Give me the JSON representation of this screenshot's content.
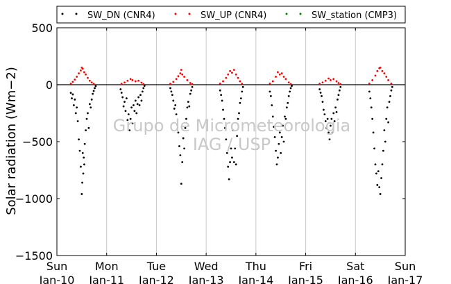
{
  "chart_data": {
    "type": "scatter",
    "title": "",
    "ylabel": "Solar radiation (Wm−2)",
    "ylim": [
      -1500,
      500
    ],
    "yticks": [
      500,
      0,
      -500,
      -1000,
      -1500
    ],
    "ytick_labels": [
      "500",
      "0",
      "−500",
      "−1000",
      "−1500"
    ],
    "xlim": [
      0,
      7
    ],
    "xticks": [
      {
        "x": 0,
        "day": "Sun",
        "date": "Jan-10"
      },
      {
        "x": 1,
        "day": "Mon",
        "date": "Jan-11"
      },
      {
        "x": 2,
        "day": "Tue",
        "date": "Jan-12"
      },
      {
        "x": 3,
        "day": "Wed",
        "date": "Jan-13"
      },
      {
        "x": 4,
        "day": "Thu",
        "date": "Jan-14"
      },
      {
        "x": 5,
        "day": "Fri",
        "date": "Jan-15"
      },
      {
        "x": 6,
        "day": "Sat",
        "date": "Jan-16"
      },
      {
        "x": 7,
        "day": "Sun",
        "date": "Jan-17"
      }
    ],
    "grid": "vertical",
    "legend_placement": "top",
    "series": [
      {
        "name": "SW_DN (CNR4)",
        "color": "#000000",
        "daily_min": [
          -960,
          -400,
          -870,
          -830,
          -700,
          -480,
          -960
        ],
        "points": [
          [
            0.28,
            -72
          ],
          [
            0.3,
            -120
          ],
          [
            0.32,
            -85
          ],
          [
            0.34,
            -180
          ],
          [
            0.36,
            -130
          ],
          [
            0.38,
            -250
          ],
          [
            0.4,
            -200
          ],
          [
            0.42,
            -320
          ],
          [
            0.44,
            -480
          ],
          [
            0.46,
            -580
          ],
          [
            0.48,
            -720
          ],
          [
            0.5,
            -960
          ],
          [
            0.51,
            -860
          ],
          [
            0.52,
            -600
          ],
          [
            0.53,
            -780
          ],
          [
            0.54,
            -640
          ],
          [
            0.55,
            -700
          ],
          [
            0.56,
            -520
          ],
          [
            0.58,
            -400
          ],
          [
            0.6,
            -300
          ],
          [
            0.62,
            -250
          ],
          [
            0.64,
            -380
          ],
          [
            0.66,
            -170
          ],
          [
            0.68,
            -200
          ],
          [
            0.7,
            -130
          ],
          [
            0.72,
            -80
          ],
          [
            0.74,
            -55
          ],
          [
            0.76,
            -30
          ],
          [
            0.78,
            -12
          ],
          [
            1.28,
            -40
          ],
          [
            1.3,
            -70
          ],
          [
            1.32,
            -110
          ],
          [
            1.34,
            -190
          ],
          [
            1.36,
            -150
          ],
          [
            1.38,
            -230
          ],
          [
            1.4,
            -120
          ],
          [
            1.42,
            -310
          ],
          [
            1.44,
            -260
          ],
          [
            1.46,
            -400
          ],
          [
            1.48,
            -300
          ],
          [
            1.5,
            -200
          ],
          [
            1.52,
            -340
          ],
          [
            1.54,
            -180
          ],
          [
            1.56,
            -230
          ],
          [
            1.58,
            -140
          ],
          [
            1.6,
            -250
          ],
          [
            1.62,
            -170
          ],
          [
            1.64,
            -110
          ],
          [
            1.66,
            -180
          ],
          [
            1.68,
            -90
          ],
          [
            1.7,
            -140
          ],
          [
            1.72,
            -60
          ],
          [
            1.74,
            -30
          ],
          [
            1.76,
            -10
          ],
          [
            2.28,
            -30
          ],
          [
            2.3,
            -60
          ],
          [
            2.32,
            -90
          ],
          [
            2.34,
            -140
          ],
          [
            2.36,
            -210
          ],
          [
            2.38,
            -180
          ],
          [
            2.4,
            -260
          ],
          [
            2.42,
            -350
          ],
          [
            2.44,
            -420
          ],
          [
            2.46,
            -540
          ],
          [
            2.48,
            -620
          ],
          [
            2.5,
            -870
          ],
          [
            2.52,
            -680
          ],
          [
            2.54,
            -470
          ],
          [
            2.56,
            -560
          ],
          [
            2.58,
            -380
          ],
          [
            2.6,
            -300
          ],
          [
            2.62,
            -200
          ],
          [
            2.64,
            -150
          ],
          [
            2.66,
            -190
          ],
          [
            2.68,
            -80
          ],
          [
            2.7,
            -50
          ],
          [
            2.72,
            -20
          ],
          [
            3.28,
            -50
          ],
          [
            3.3,
            -90
          ],
          [
            3.32,
            -140
          ],
          [
            3.34,
            -220
          ],
          [
            3.36,
            -300
          ],
          [
            3.38,
            -380
          ],
          [
            3.4,
            -480
          ],
          [
            3.42,
            -600
          ],
          [
            3.44,
            -720
          ],
          [
            3.46,
            -830
          ],
          [
            3.48,
            -680
          ],
          [
            3.5,
            -560
          ],
          [
            3.52,
            -640
          ],
          [
            3.54,
            -400
          ],
          [
            3.56,
            -680
          ],
          [
            3.58,
            -560
          ],
          [
            3.6,
            -700
          ],
          [
            3.62,
            -450
          ],
          [
            3.64,
            -300
          ],
          [
            3.66,
            -250
          ],
          [
            3.68,
            -160
          ],
          [
            3.7,
            -120
          ],
          [
            3.72,
            -60
          ],
          [
            3.74,
            -20
          ],
          [
            4.28,
            -60
          ],
          [
            4.3,
            -100
          ],
          [
            4.32,
            -180
          ],
          [
            4.34,
            -280
          ],
          [
            4.36,
            -370
          ],
          [
            4.38,
            -460
          ],
          [
            4.4,
            -580
          ],
          [
            4.42,
            -700
          ],
          [
            4.44,
            -640
          ],
          [
            4.46,
            -520
          ],
          [
            4.48,
            -420
          ],
          [
            4.5,
            -600
          ],
          [
            4.52,
            -460
          ],
          [
            4.54,
            -360
          ],
          [
            4.56,
            -500
          ],
          [
            4.58,
            -280
          ],
          [
            4.6,
            -300
          ],
          [
            4.62,
            -200
          ],
          [
            4.64,
            -160
          ],
          [
            4.66,
            -100
          ],
          [
            4.68,
            -60
          ],
          [
            4.7,
            -30
          ],
          [
            4.72,
            -10
          ],
          [
            5.28,
            -40
          ],
          [
            5.3,
            -70
          ],
          [
            5.32,
            -100
          ],
          [
            5.34,
            -150
          ],
          [
            5.36,
            -220
          ],
          [
            5.38,
            -260
          ],
          [
            5.4,
            -320
          ],
          [
            5.42,
            -380
          ],
          [
            5.44,
            -300
          ],
          [
            5.46,
            -420
          ],
          [
            5.48,
            -480
          ],
          [
            5.5,
            -360
          ],
          [
            5.52,
            -300
          ],
          [
            5.54,
            -420
          ],
          [
            5.56,
            -250
          ],
          [
            5.58,
            -320
          ],
          [
            5.6,
            -200
          ],
          [
            5.62,
            -240
          ],
          [
            5.64,
            -130
          ],
          [
            5.66,
            -90
          ],
          [
            5.68,
            -50
          ],
          [
            5.7,
            -20
          ],
          [
            6.28,
            -60
          ],
          [
            6.3,
            -120
          ],
          [
            6.32,
            -200
          ],
          [
            6.34,
            -300
          ],
          [
            6.36,
            -420
          ],
          [
            6.38,
            -560
          ],
          [
            6.4,
            -700
          ],
          [
            6.42,
            -780
          ],
          [
            6.44,
            -880
          ],
          [
            6.46,
            -760
          ],
          [
            6.48,
            -900
          ],
          [
            6.5,
            -960
          ],
          [
            6.52,
            -820
          ],
          [
            6.54,
            -700
          ],
          [
            6.56,
            -580
          ],
          [
            6.58,
            -400
          ],
          [
            6.6,
            -500
          ],
          [
            6.62,
            -300
          ],
          [
            6.64,
            -200
          ],
          [
            6.66,
            -330
          ],
          [
            6.68,
            -150
          ],
          [
            6.7,
            -100
          ],
          [
            6.72,
            -50
          ],
          [
            6.74,
            -20
          ]
        ]
      },
      {
        "name": "SW_UP (CNR4)",
        "color": "#ff0000",
        "daily_max": [
          150,
          50,
          130,
          130,
          110,
          55,
          150
        ],
        "points": [
          [
            0.28,
            10
          ],
          [
            0.32,
            25
          ],
          [
            0.36,
            45
          ],
          [
            0.4,
            70
          ],
          [
            0.44,
            100
          ],
          [
            0.48,
            125
          ],
          [
            0.5,
            150
          ],
          [
            0.52,
            140
          ],
          [
            0.55,
            110
          ],
          [
            0.58,
            90
          ],
          [
            0.62,
            60
          ],
          [
            0.66,
            35
          ],
          [
            0.7,
            20
          ],
          [
            0.74,
            8
          ],
          [
            1.3,
            8
          ],
          [
            1.36,
            20
          ],
          [
            1.42,
            35
          ],
          [
            1.48,
            50
          ],
          [
            1.52,
            40
          ],
          [
            1.58,
            30
          ],
          [
            1.64,
            35
          ],
          [
            1.7,
            18
          ],
          [
            1.74,
            5
          ],
          [
            2.28,
            8
          ],
          [
            2.34,
            25
          ],
          [
            2.4,
            50
          ],
          [
            2.44,
            75
          ],
          [
            2.48,
            100
          ],
          [
            2.5,
            130
          ],
          [
            2.52,
            90
          ],
          [
            2.56,
            70
          ],
          [
            2.62,
            40
          ],
          [
            2.68,
            15
          ],
          [
            2.72,
            5
          ],
          [
            3.28,
            10
          ],
          [
            3.34,
            30
          ],
          [
            3.4,
            60
          ],
          [
            3.44,
            90
          ],
          [
            3.48,
            120
          ],
          [
            3.52,
            105
          ],
          [
            3.56,
            130
          ],
          [
            3.6,
            90
          ],
          [
            3.64,
            60
          ],
          [
            3.68,
            30
          ],
          [
            3.72,
            8
          ],
          [
            4.28,
            10
          ],
          [
            4.34,
            30
          ],
          [
            4.4,
            70
          ],
          [
            4.44,
            110
          ],
          [
            4.48,
            90
          ],
          [
            4.52,
            100
          ],
          [
            4.56,
            70
          ],
          [
            4.6,
            50
          ],
          [
            4.66,
            20
          ],
          [
            4.7,
            5
          ],
          [
            5.28,
            8
          ],
          [
            5.34,
            20
          ],
          [
            5.4,
            35
          ],
          [
            5.46,
            55
          ],
          [
            5.5,
            40
          ],
          [
            5.56,
            50
          ],
          [
            5.62,
            30
          ],
          [
            5.66,
            15
          ],
          [
            5.7,
            5
          ],
          [
            6.28,
            10
          ],
          [
            6.34,
            40
          ],
          [
            6.4,
            80
          ],
          [
            6.44,
            120
          ],
          [
            6.48,
            145
          ],
          [
            6.5,
            150
          ],
          [
            6.54,
            120
          ],
          [
            6.58,
            100
          ],
          [
            6.62,
            70
          ],
          [
            6.66,
            40
          ],
          [
            6.72,
            10
          ]
        ]
      },
      {
        "name": "SW_station (CMP3)",
        "color": "#008000",
        "points": []
      }
    ],
    "annotations": [
      "Grupo de Micrometeorologia",
      "IAG / USP"
    ]
  }
}
